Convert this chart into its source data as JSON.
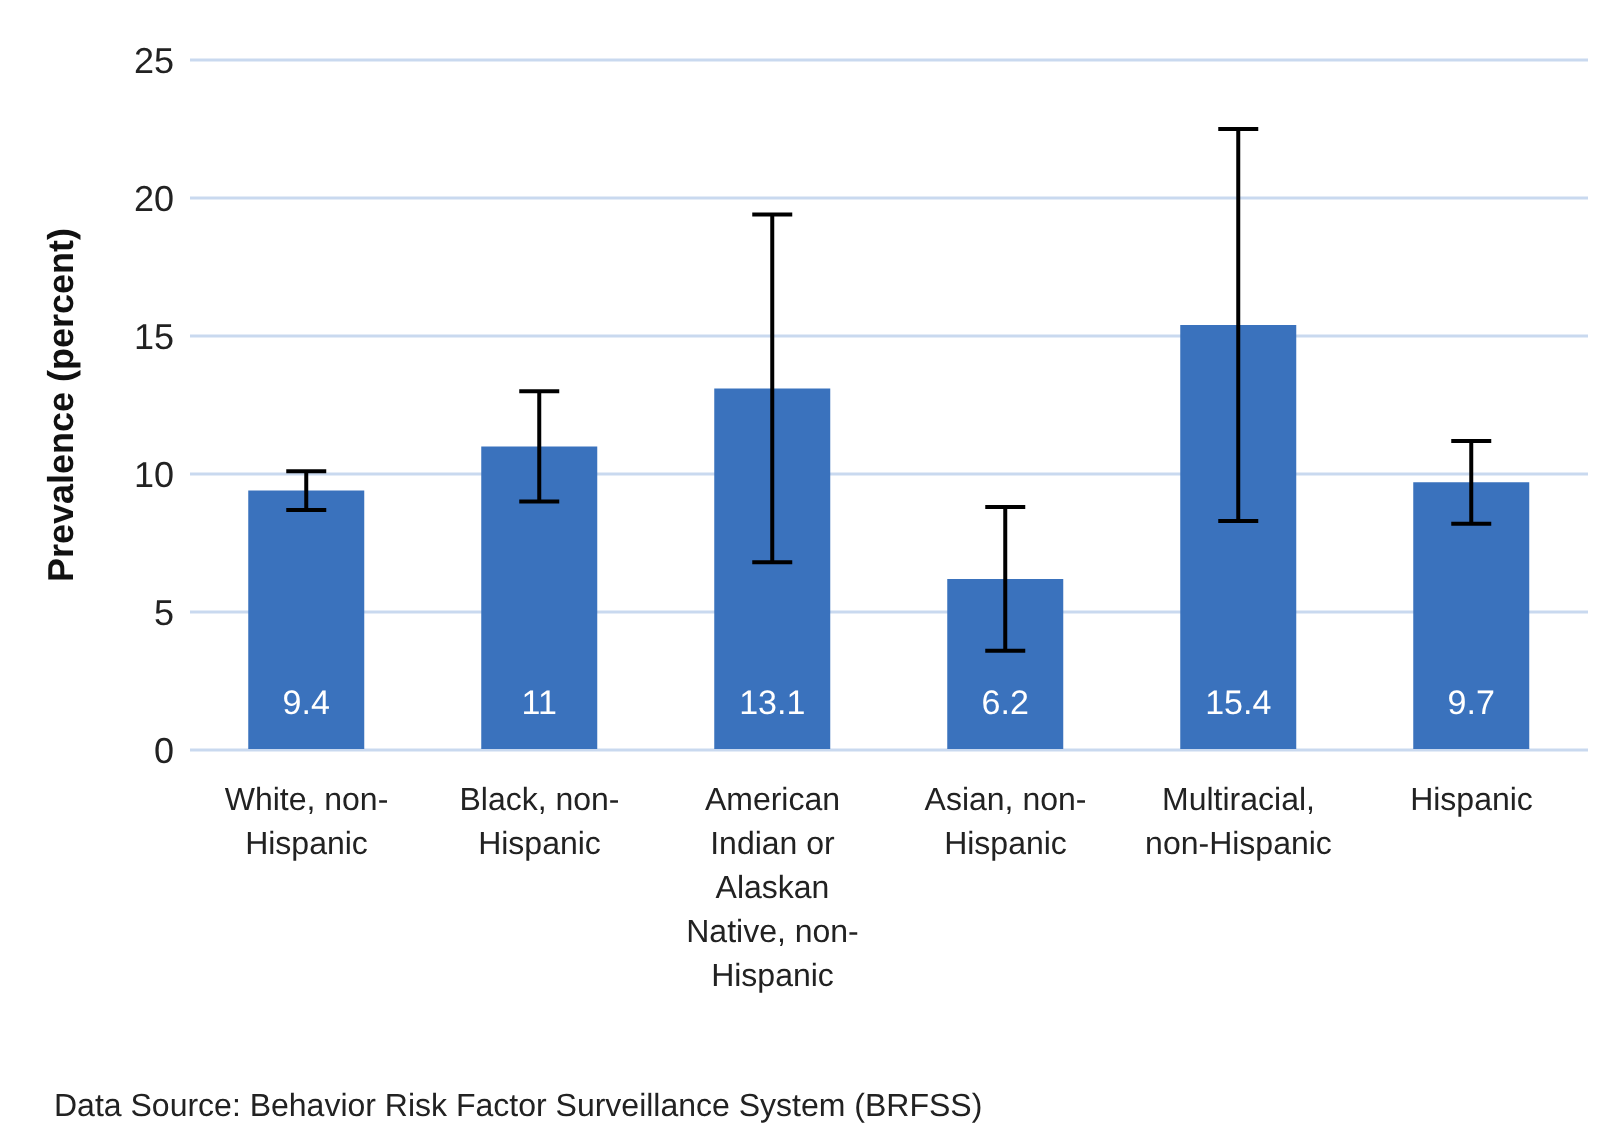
{
  "chart_data": {
    "type": "bar",
    "ylabel": "Prevalence (percent)",
    "categories": [
      "White, non-Hispanic",
      "Black, non-Hispanic",
      "American Indian or Alaskan Native, non-Hispanic",
      "Asian, non-Hispanic",
      "Multiracial, non-Hispanic",
      "Hispanic"
    ],
    "values": [
      9.4,
      11,
      13.1,
      6.2,
      15.4,
      9.7
    ],
    "errors": [
      [
        8.7,
        10.1
      ],
      [
        9.0,
        13.0
      ],
      [
        6.8,
        19.4
      ],
      [
        3.6,
        8.8
      ],
      [
        8.3,
        22.5
      ],
      [
        8.2,
        11.2
      ]
    ],
    "color": "#3a72bd",
    "data_labels": true,
    "grid": "y",
    "ylim": [
      0,
      25
    ],
    "yticks": [
      0,
      5,
      10,
      15,
      20,
      25
    ],
    "annotations": [
      "Data Source: Behavior Risk Factor Surveillance System (BRFSS)"
    ]
  }
}
